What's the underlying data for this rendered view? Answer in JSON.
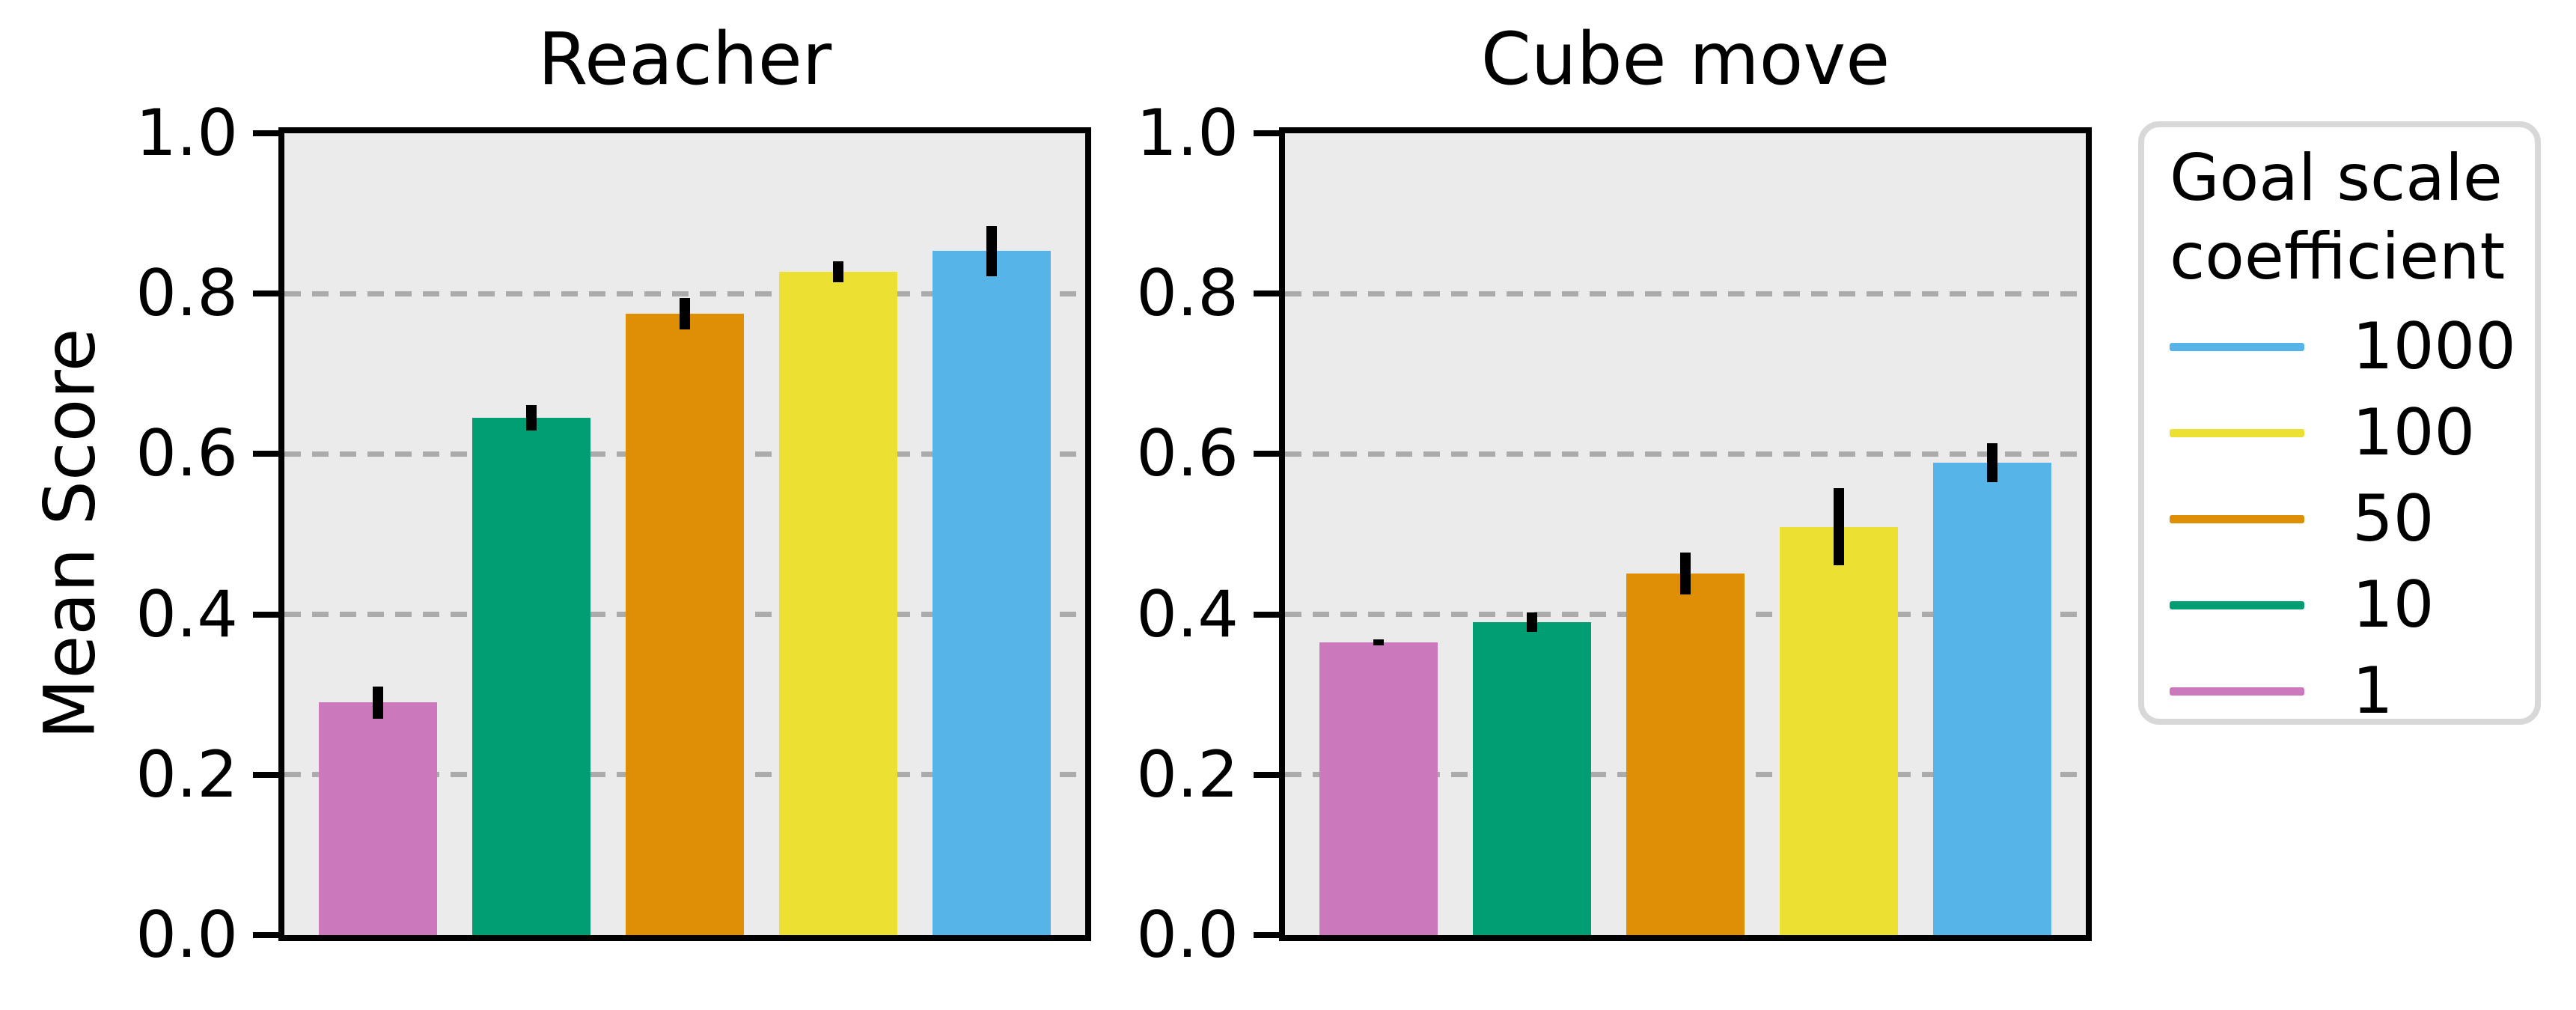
{
  "figure": {
    "ylabel": "Mean Score",
    "background_color": "#ffffff",
    "plot_background_color": "#ebebeb",
    "gridline_color": "#ababab",
    "spine_color": "#000000",
    "errorbar_color": "#000000"
  },
  "legend": {
    "title_lines": [
      "Goal scale",
      "coefficient"
    ],
    "position": "right-of-plots",
    "items": [
      {
        "label": "1000",
        "color": "#56B4E9"
      },
      {
        "label": "100",
        "color": "#ECE133"
      },
      {
        "label": "50",
        "color": "#DE8F05"
      },
      {
        "label": "10",
        "color": "#029E73"
      },
      {
        "label": "1",
        "color": "#CC78BC"
      }
    ]
  },
  "chart_data": [
    {
      "type": "bar",
      "title": "Reacher",
      "categories": [
        "1",
        "10",
        "50",
        "100",
        "1000"
      ],
      "values": [
        0.29,
        0.645,
        0.775,
        0.827,
        0.853
      ],
      "errors": [
        0.02,
        0.016,
        0.02,
        0.013,
        0.031
      ],
      "bar_colors": [
        "#CC78BC",
        "#029E73",
        "#DE8F05",
        "#ECE133",
        "#56B4E9"
      ],
      "ylabel": "Mean Score",
      "ylim": [
        0.0,
        1.0
      ],
      "yticks": [
        0.0,
        0.2,
        0.4,
        0.6,
        0.8,
        1.0
      ],
      "grid": "horizontal dashed at 0.2, 0.4, 0.6, 0.8",
      "xticklabels_visible": false
    },
    {
      "type": "bar",
      "title": "Cube move",
      "categories": [
        "1",
        "10",
        "50",
        "100",
        "1000"
      ],
      "values": [
        0.365,
        0.39,
        0.451,
        0.509,
        0.589
      ],
      "errors": [
        0.004,
        0.012,
        0.026,
        0.048,
        0.024
      ],
      "bar_colors": [
        "#CC78BC",
        "#029E73",
        "#DE8F05",
        "#ECE133",
        "#56B4E9"
      ],
      "ylabel": "Mean Score",
      "ylim": [
        0.0,
        1.0
      ],
      "yticks": [
        0.0,
        0.2,
        0.4,
        0.6,
        0.8,
        1.0
      ],
      "grid": "horizontal dashed at 0.2, 0.4, 0.6, 0.8",
      "xticklabels_visible": false
    }
  ]
}
